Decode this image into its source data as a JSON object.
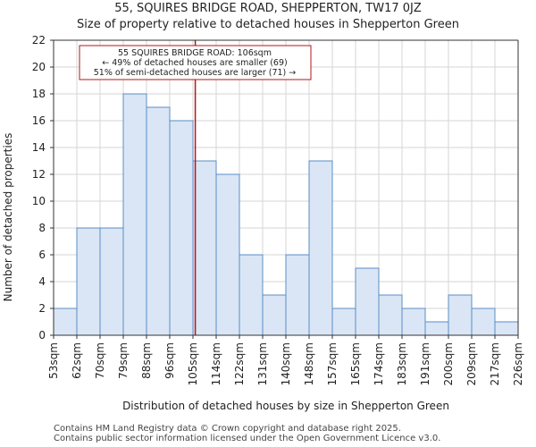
{
  "title_line1": "55, SQUIRES BRIDGE ROAD, SHEPPERTON, TW17 0JZ",
  "title_line2": "Size of property relative to detached houses in Shepperton Green",
  "footer_line1": "Contains HM Land Registry data © Crown copyright and database right 2025.",
  "footer_line2": "Contains public sector information licensed under the Open Government Licence v3.0.",
  "colors": {
    "bar_fill": "#dae6f5",
    "bar_stroke": "#5b8cc6",
    "marker": "#b3161b",
    "annotation_border": "#b3161b"
  },
  "chart_data": {
    "type": "bar",
    "title": "Size of property relative to detached houses in Shepperton Green",
    "xlabel": "Distribution of detached houses by size in Shepperton Green",
    "ylabel": "Number of detached properties",
    "ylim": [
      0,
      22
    ],
    "yticks": [
      0,
      2,
      4,
      6,
      8,
      10,
      12,
      14,
      16,
      18,
      20,
      22
    ],
    "bin_edges": [
      "53sqm",
      "62sqm",
      "70sqm",
      "79sqm",
      "88sqm",
      "96sqm",
      "105sqm",
      "114sqm",
      "122sqm",
      "131sqm",
      "140sqm",
      "148sqm",
      "157sqm",
      "165sqm",
      "174sqm",
      "183sqm",
      "191sqm",
      "200sqm",
      "209sqm",
      "217sqm",
      "226sqm"
    ],
    "values": [
      2,
      8,
      8,
      18,
      17,
      16,
      13,
      12,
      6,
      3,
      6,
      13,
      2,
      5,
      3,
      2,
      1,
      3,
      2,
      1
    ],
    "marker": {
      "value_sqm": 106,
      "bin_position": 6.1
    },
    "annotation": {
      "line1": "55 SQUIRES BRIDGE ROAD: 106sqm",
      "line2": "← 49% of detached houses are smaller (69)",
      "line3": "51% of semi-detached houses are larger (71) →"
    }
  }
}
